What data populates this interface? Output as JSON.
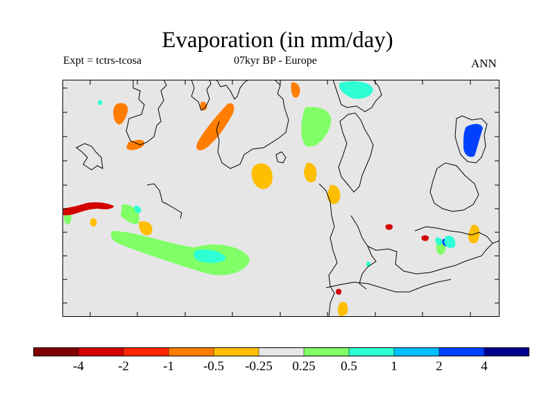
{
  "header": {
    "title": "Evaporation (in mm/day)",
    "experiment": "Expt = tctrs-tcosa",
    "period_region": "07kyr BP - Europe",
    "season": "ANN"
  },
  "colorbar": {
    "colors": [
      "#7f0000",
      "#d40000",
      "#ff2800",
      "#ff7d00",
      "#ffbe00",
      "#e6e6e6",
      "#80ff66",
      "#2effd4",
      "#00bfff",
      "#0040ff",
      "#00008f"
    ],
    "labels": [
      "-4",
      "-2",
      "-1",
      "-0.5",
      "-0.25",
      "0.25",
      "0.5",
      "1",
      "2",
      "4"
    ]
  },
  "map": {
    "background_color": "#e6e6e6",
    "coastline_color": "#000000",
    "anomaly_patches": [
      {
        "region": "southern-greenland",
        "level": "-0.5",
        "color": "#ff7d00"
      },
      {
        "region": "iceland-north-sea",
        "level": "-0.5",
        "color": "#ff7d00"
      },
      {
        "region": "central-north-atlantic",
        "level": "-0.25",
        "color": "#ffbe00"
      },
      {
        "region": "subtropical-atlantic",
        "level": "0.5",
        "color": "#80ff66"
      },
      {
        "region": "subtropical-atlantic-core",
        "level": "1",
        "color": "#2effd4"
      },
      {
        "region": "barents-sea",
        "level": "1",
        "color": "#2effd4"
      },
      {
        "region": "caspian-sea",
        "level": "4",
        "color": "#0040ff"
      },
      {
        "region": "labrador-coast",
        "level": "-2",
        "color": "#d40000"
      },
      {
        "region": "eastern-mediterranean",
        "level": "1",
        "color": "#2effd4"
      }
    ]
  }
}
